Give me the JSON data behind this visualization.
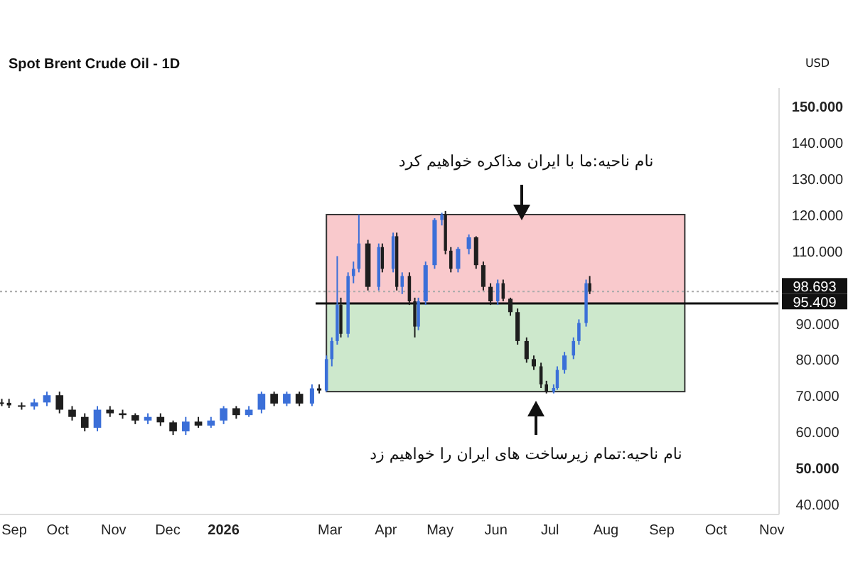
{
  "chart_data": {
    "type": "candlestick",
    "title": "Spot Brent Crude Oil - 1D",
    "x": [
      "2025-08-31",
      "2025-09-04",
      "2025-09-11",
      "2025-09-18",
      "2025-09-25",
      "2025-10-02",
      "2025-10-09",
      "2025-10-16",
      "2025-10-23",
      "2025-10-30",
      "2025-11-06",
      "2025-11-13",
      "2025-11-20",
      "2025-11-27",
      "2025-12-04",
      "2025-12-11",
      "2025-12-18",
      "2025-12-25",
      "2026-01-01",
      "2026-01-08",
      "2026-01-15",
      "2026-01-22",
      "2026-01-29",
      "2026-02-05",
      "2026-02-12",
      "2026-02-19",
      "2026-02-23",
      "2026-02-27",
      "2026-03-02",
      "2026-03-05",
      "2026-03-07",
      "2026-03-11",
      "2026-03-14",
      "2026-03-17",
      "2026-03-22",
      "2026-03-28",
      "2026-03-30",
      "2026-04-05",
      "2026-04-07",
      "2026-04-10",
      "2026-04-14",
      "2026-04-17",
      "2026-04-19",
      "2026-04-23",
      "2026-04-28",
      "2026-05-02",
      "2026-05-04",
      "2026-05-07",
      "2026-05-11",
      "2026-05-17",
      "2026-05-21",
      "2026-05-25",
      "2026-05-29",
      "2026-06-02",
      "2026-06-05",
      "2026-06-09",
      "2026-06-13",
      "2026-06-18",
      "2026-06-22",
      "2026-06-26",
      "2026-06-29",
      "2026-07-03",
      "2026-07-05",
      "2026-07-09",
      "2026-07-14",
      "2026-07-17",
      "2026-07-21",
      "2026-07-23"
    ],
    "ohlc": [
      [
        68,
        69,
        67,
        67.9
      ],
      [
        67.9,
        69,
        66.5,
        67.2
      ],
      [
        67.2,
        68,
        66,
        66.9
      ],
      [
        66.9,
        69,
        66,
        68
      ],
      [
        68,
        71,
        67,
        70
      ],
      [
        70,
        71,
        65,
        66
      ],
      [
        66,
        67,
        63,
        64
      ],
      [
        64,
        65,
        60,
        61
      ],
      [
        61,
        67,
        60,
        66
      ],
      [
        66,
        67,
        64,
        65
      ],
      [
        65,
        66,
        63.5,
        64.5
      ],
      [
        64.5,
        65,
        62,
        63
      ],
      [
        63,
        65,
        62,
        64
      ],
      [
        64,
        65,
        61.5,
        62.5
      ],
      [
        62.5,
        63,
        59,
        60
      ],
      [
        60,
        64,
        59,
        62.7
      ],
      [
        62.7,
        64,
        61,
        61.6
      ],
      [
        61.6,
        64,
        61,
        63
      ],
      [
        63,
        67,
        62,
        66.4
      ],
      [
        66.4,
        67,
        63.5,
        64.5
      ],
      [
        64.5,
        67,
        64,
        66
      ],
      [
        66,
        71,
        65,
        70.4
      ],
      [
        70.4,
        71,
        67,
        67.7
      ],
      [
        67.7,
        71,
        67,
        70.4
      ],
      [
        70.4,
        71,
        67,
        67.7
      ],
      [
        67.7,
        73,
        67,
        71.9
      ],
      [
        71.9,
        73,
        70.5,
        71.3
      ],
      [
        71.3,
        81,
        71,
        80
      ],
      [
        80,
        86,
        78,
        85
      ],
      [
        85,
        108.5,
        84,
        95
      ],
      [
        95,
        97,
        86,
        87
      ],
      [
        87,
        104,
        86,
        103
      ],
      [
        103,
        107,
        101,
        105
      ],
      [
        105,
        120,
        104,
        112
      ],
      [
        112,
        113,
        99,
        100
      ],
      [
        100,
        112,
        99,
        111
      ],
      [
        111,
        112,
        104,
        105
      ],
      [
        105,
        115,
        104,
        114
      ],
      [
        114,
        115,
        99,
        100
      ],
      [
        100,
        104,
        98,
        103
      ],
      [
        103,
        104,
        95,
        96
      ],
      [
        96,
        97,
        86,
        89
      ],
      [
        89,
        97,
        88,
        96
      ],
      [
        96,
        107,
        95,
        106
      ],
      [
        106,
        119,
        105,
        118.5
      ],
      [
        118.5,
        120.5,
        117,
        120
      ],
      [
        120,
        121,
        109,
        110
      ],
      [
        110,
        111,
        104,
        105
      ],
      [
        105,
        111,
        104,
        110.5
      ],
      [
        110.5,
        114.5,
        109,
        113.7
      ],
      [
        113.7,
        114,
        105,
        106
      ],
      [
        106,
        107,
        99,
        100
      ],
      [
        100,
        101,
        95,
        96
      ],
      [
        96,
        102,
        95,
        101
      ],
      [
        101,
        102,
        96,
        96.7
      ],
      [
        96.7,
        97,
        92,
        93
      ],
      [
        93,
        94,
        84,
        85
      ],
      [
        85,
        86,
        79,
        80
      ],
      [
        80,
        81,
        77,
        78
      ],
      [
        78,
        79,
        72,
        73
      ],
      [
        73,
        74,
        70.5,
        71
      ],
      [
        71,
        73,
        70.5,
        72
      ],
      [
        72,
        78,
        71.5,
        77
      ],
      [
        77,
        82,
        76,
        81
      ],
      [
        81,
        86,
        80,
        85
      ],
      [
        85,
        91,
        84,
        90
      ],
      [
        90,
        102,
        89,
        101
      ],
      [
        101,
        103,
        98,
        98.693
      ]
    ],
    "colors": [
      "#1e1e1e",
      "#1e1e1e",
      "#1e1e1e",
      "#3b6fd8",
      "#3b6fd8",
      "#1e1e1e",
      "#1e1e1e",
      "#1e1e1e",
      "#3b6fd8",
      "#1e1e1e",
      "#1e1e1e",
      "#1e1e1e",
      "#3b6fd8",
      "#1e1e1e",
      "#1e1e1e",
      "#3b6fd8",
      "#1e1e1e",
      "#3b6fd8",
      "#3b6fd8",
      "#1e1e1e",
      "#3b6fd8",
      "#3b6fd8",
      "#1e1e1e",
      "#3b6fd8",
      "#1e1e1e",
      "#3b6fd8",
      "#1e1e1e",
      "#3b6fd8",
      "#3b6fd8",
      "#3b6fd8",
      "#1e1e1e",
      "#3b6fd8",
      "#3b6fd8",
      "#3b6fd8",
      "#1e1e1e",
      "#3b6fd8",
      "#1e1e1e",
      "#3b6fd8",
      "#1e1e1e",
      "#3b6fd8",
      "#1e1e1e",
      "#1e1e1e",
      "#3b6fd8",
      "#3b6fd8",
      "#3b6fd8",
      "#3b6fd8",
      "#1e1e1e",
      "#1e1e1e",
      "#3b6fd8",
      "#3b6fd8",
      "#1e1e1e",
      "#1e1e1e",
      "#1e1e1e",
      "#3b6fd8",
      "#1e1e1e",
      "#1e1e1e",
      "#1e1e1e",
      "#1e1e1e",
      "#1e1e1e",
      "#1e1e1e",
      "#1e1e1e",
      "#3b6fd8",
      "#3b6fd8",
      "#3b6fd8",
      "#3b6fd8",
      "#3b6fd8",
      "#3b6fd8",
      "#1e1e1e"
    ],
    "xlim": [
      "2025-08-30",
      "2026-11-05"
    ],
    "xticks": [
      {
        "value": "2025-09-01",
        "label": "Sep"
      },
      {
        "value": "2025-10-01",
        "label": "Oct"
      },
      {
        "value": "2025-11-01",
        "label": "Nov"
      },
      {
        "value": "2025-12-01",
        "label": "Dec"
      },
      {
        "value": "2026-01-01",
        "label": "2026"
      },
      {
        "value": "2026-03-01",
        "label": "Mar"
      },
      {
        "value": "2026-04-01",
        "label": "Apr"
      },
      {
        "value": "2026-05-01",
        "label": "May"
      },
      {
        "value": "2026-06-01",
        "label": "Jun"
      },
      {
        "value": "2026-07-01",
        "label": "Jul"
      },
      {
        "value": "2026-08-01",
        "label": "Aug"
      },
      {
        "value": "2026-09-01",
        "label": "Sep"
      },
      {
        "value": "2026-10-01",
        "label": "Oct"
      },
      {
        "value": "2026-11-01",
        "label": "Nov"
      }
    ],
    "ylim": [
      37,
      155
    ],
    "yticks": [
      {
        "value": 40,
        "label": "40.000"
      },
      {
        "value": 50,
        "label": "50.000"
      },
      {
        "value": 60,
        "label": "60.000"
      },
      {
        "value": 70,
        "label": "70.000"
      },
      {
        "value": 80,
        "label": "80.000"
      },
      {
        "value": 90,
        "label": "90.000"
      },
      {
        "value": 110,
        "label": "110.000"
      },
      {
        "value": 120,
        "label": "120.000"
      },
      {
        "value": 130,
        "label": "130.000"
      },
      {
        "value": 140,
        "label": "140.000"
      },
      {
        "value": 150,
        "label": "150.000"
      }
    ],
    "bands": [
      {
        "axis": "y",
        "from": 95.409,
        "to": 120,
        "color": "#f9c9cc"
      },
      {
        "axis": "y",
        "from": 71,
        "to": 95.409,
        "color": "#cde8cc"
      }
    ],
    "ref_lines": [
      {
        "axis": "y",
        "value": 98.693,
        "label": "98.693",
        "color": "#aaaaaa",
        "line_style": "dotted"
      },
      {
        "axis": "y",
        "value": 95.409,
        "label": "95.409",
        "color": "#111111",
        "line_style": "solid"
      }
    ],
    "annotations": [
      "نام ناحیه:ما با ایران مذاکره خواهیم کرد",
      "نام ناحیه:تمام زیرساخت های ایران را خواهیم زد",
      "USD"
    ],
    "grid": false
  }
}
